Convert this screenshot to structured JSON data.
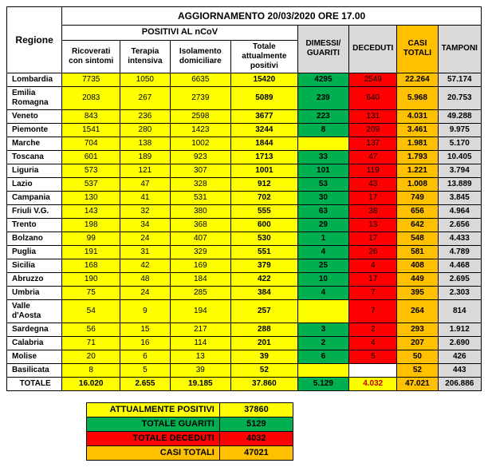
{
  "title": "AGGIORNAMENTO 20/03/2020 ORE 17.00",
  "headers": {
    "regione": "Regione",
    "positivi_group": "POSITIVI AL nCoV",
    "ricoverati": "Ricoverati con sintomi",
    "terapia": "Terapia intensiva",
    "isolamento": "Isolamento domiciliare",
    "totale_pos": "Totale attualmente positivi",
    "guariti": "DIMESSI/ GUARITI",
    "deceduti": "DECEDUTI",
    "casi_totali": "CASI TOTALI",
    "tamponi": "TAMPONI"
  },
  "rows": [
    {
      "regione": "Lombardia",
      "ric": "7735",
      "ter": "1050",
      "iso": "6635",
      "tot": "15420",
      "gua": "4295",
      "dec": "2549",
      "casi": "22.264",
      "tam": "57.174"
    },
    {
      "regione": "Emilia Romagna",
      "ric": "2083",
      "ter": "267",
      "iso": "2739",
      "tot": "5089",
      "gua": "239",
      "dec": "640",
      "casi": "5.968",
      "tam": "20.753"
    },
    {
      "regione": "Veneto",
      "ric": "843",
      "ter": "236",
      "iso": "2598",
      "tot": "3677",
      "gua": "223",
      "dec": "131",
      "casi": "4.031",
      "tam": "49.288"
    },
    {
      "regione": "Piemonte",
      "ric": "1541",
      "ter": "280",
      "iso": "1423",
      "tot": "3244",
      "gua": "8",
      "dec": "209",
      "casi": "3.461",
      "tam": "9.975"
    },
    {
      "regione": "Marche",
      "ric": "704",
      "ter": "138",
      "iso": "1002",
      "tot": "1844",
      "gua": "",
      "dec": "137",
      "casi": "1.981",
      "tam": "5.170"
    },
    {
      "regione": "Toscana",
      "ric": "601",
      "ter": "189",
      "iso": "923",
      "tot": "1713",
      "gua": "33",
      "dec": "47",
      "casi": "1.793",
      "tam": "10.405"
    },
    {
      "regione": "Liguria",
      "ric": "573",
      "ter": "121",
      "iso": "307",
      "tot": "1001",
      "gua": "101",
      "dec": "119",
      "casi": "1.221",
      "tam": "3.794"
    },
    {
      "regione": "Lazio",
      "ric": "537",
      "ter": "47",
      "iso": "328",
      "tot": "912",
      "gua": "53",
      "dec": "43",
      "casi": "1.008",
      "tam": "13.889"
    },
    {
      "regione": "Campania",
      "ric": "130",
      "ter": "41",
      "iso": "531",
      "tot": "702",
      "gua": "30",
      "dec": "17",
      "casi": "749",
      "tam": "3.845"
    },
    {
      "regione": "Friuli V.G.",
      "ric": "143",
      "ter": "32",
      "iso": "380",
      "tot": "555",
      "gua": "63",
      "dec": "38",
      "casi": "656",
      "tam": "4.964"
    },
    {
      "regione": "Trento",
      "ric": "198",
      "ter": "34",
      "iso": "368",
      "tot": "600",
      "gua": "29",
      "dec": "13",
      "casi": "642",
      "tam": "2.656"
    },
    {
      "regione": "Bolzano",
      "ric": "99",
      "ter": "24",
      "iso": "407",
      "tot": "530",
      "gua": "1",
      "dec": "17",
      "casi": "548",
      "tam": "4.433"
    },
    {
      "regione": "Puglia",
      "ric": "191",
      "ter": "31",
      "iso": "329",
      "tot": "551",
      "gua": "4",
      "dec": "26",
      "casi": "581",
      "tam": "4.789"
    },
    {
      "regione": "Sicilia",
      "ric": "168",
      "ter": "42",
      "iso": "169",
      "tot": "379",
      "gua": "25",
      "dec": "4",
      "casi": "408",
      "tam": "4.468"
    },
    {
      "regione": "Abruzzo",
      "ric": "190",
      "ter": "48",
      "iso": "184",
      "tot": "422",
      "gua": "10",
      "dec": "17",
      "casi": "449",
      "tam": "2.695"
    },
    {
      "regione": "Umbria",
      "ric": "75",
      "ter": "24",
      "iso": "285",
      "tot": "384",
      "gua": "4",
      "dec": "7",
      "casi": "395",
      "tam": "2.303"
    },
    {
      "regione": "Valle d'Aosta",
      "ric": "54",
      "ter": "9",
      "iso": "194",
      "tot": "257",
      "gua": "",
      "dec": "7",
      "casi": "264",
      "tam": "814"
    },
    {
      "regione": "Sardegna",
      "ric": "56",
      "ter": "15",
      "iso": "217",
      "tot": "288",
      "gua": "3",
      "dec": "2",
      "casi": "293",
      "tam": "1.912"
    },
    {
      "regione": "Calabria",
      "ric": "71",
      "ter": "16",
      "iso": "114",
      "tot": "201",
      "gua": "2",
      "dec": "4",
      "casi": "207",
      "tam": "2.690"
    },
    {
      "regione": "Molise",
      "ric": "20",
      "ter": "6",
      "iso": "13",
      "tot": "39",
      "gua": "6",
      "dec": "5",
      "casi": "50",
      "tam": "426"
    },
    {
      "regione": "Basilicata",
      "ric": "8",
      "ter": "5",
      "iso": "39",
      "tot": "52",
      "gua": "",
      "dec": "",
      "casi": "52",
      "tam": "443",
      "dec_white": true
    }
  ],
  "total": {
    "label": "TOTALE",
    "ric": "16.020",
    "ter": "2.655",
    "iso": "19.185",
    "tot": "37.860",
    "gua": "5.129",
    "dec": "4.032",
    "casi": "47.021",
    "tam": "206.886"
  },
  "summary": [
    {
      "label": "ATTUALMENTE POSITIVI",
      "value": "37860",
      "cls": "yellow"
    },
    {
      "label": "TOTALE GUARITI",
      "value": "5129",
      "cls": "green"
    },
    {
      "label": "TOTALE DECEDUTI",
      "value": "4032",
      "cls": "red"
    },
    {
      "label": "CASI TOTALI",
      "value": "47021",
      "cls": "orange"
    }
  ]
}
